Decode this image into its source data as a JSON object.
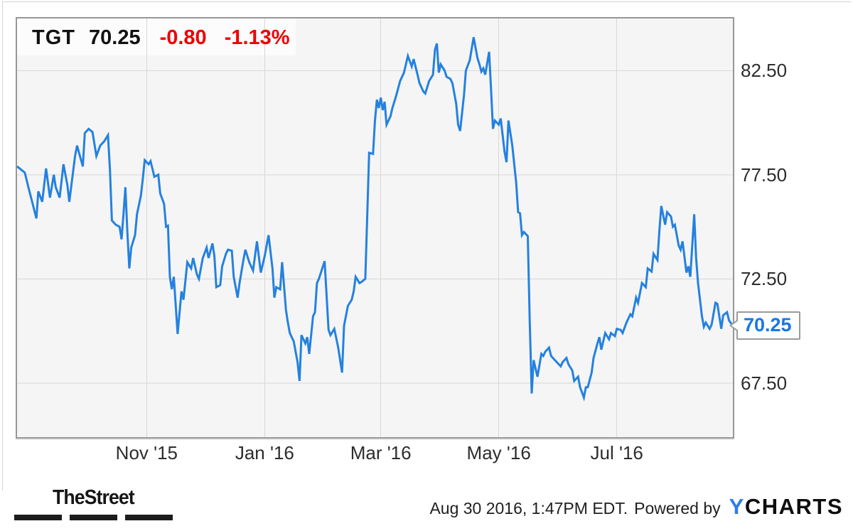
{
  "header": {
    "symbol": "TGT",
    "price": "70.25",
    "change": "-0.80",
    "change_pct": "-1.13%"
  },
  "callout": {
    "text": "70.25"
  },
  "footer": {
    "brand": "TheStreet",
    "timestamp": "Aug 30 2016, 1:47PM EDT.",
    "powered_by": "Powered by",
    "logo_y": "Y",
    "logo_charts": "CHARTS"
  },
  "colors": {
    "line_blue": "#2481df",
    "callout_blue": "#1877e6",
    "negative_red": "#ee0000",
    "logo_blue": "#2e7bf0",
    "grid": "#d7d7d7",
    "plot_bg": "#f5f5f5",
    "plot_border": "#979797"
  },
  "chart_data": {
    "type": "line",
    "title": "TGT price chart, 1 year",
    "series_name": "TGT",
    "legend": "none",
    "grid": "on",
    "x_axis": {
      "unit": "days_since_start",
      "start_date": "2015-08-26",
      "end_date": "2016-08-30",
      "range": [
        0,
        370
      ],
      "ticks": [
        {
          "label": "Nov '15",
          "day": 67
        },
        {
          "label": "Jan '16",
          "day": 128
        },
        {
          "label": "Mar '16",
          "day": 188
        },
        {
          "label": "May '16",
          "day": 249
        },
        {
          "label": "Jul '16",
          "day": 310
        }
      ]
    },
    "y_axis": {
      "range": [
        64.9,
        85.0
      ],
      "ticks": [
        {
          "label": "82.50",
          "value": 82.5
        },
        {
          "label": "77.50",
          "value": 77.5
        },
        {
          "label": "72.50",
          "value": 72.5
        },
        {
          "label": "67.50",
          "value": 67.5
        }
      ]
    },
    "last_point": {
      "date": "2016-08-30",
      "price": 70.25
    },
    "points": [
      [
        0,
        77.9
      ],
      [
        4,
        77.6
      ],
      [
        6,
        76.85
      ],
      [
        10,
        75.4
      ],
      [
        11,
        76.7
      ],
      [
        13,
        76.2
      ],
      [
        15,
        77.8
      ],
      [
        17,
        76.4
      ],
      [
        19,
        77.5
      ],
      [
        20,
        76.9
      ],
      [
        22,
        76.4
      ],
      [
        24,
        78.0
      ],
      [
        26,
        77.0
      ],
      [
        27,
        76.2
      ],
      [
        30,
        78.4
      ],
      [
        31,
        78.9
      ],
      [
        34,
        77.9
      ],
      [
        35,
        79.5
      ],
      [
        37,
        79.7
      ],
      [
        39,
        79.55
      ],
      [
        41,
        78.4
      ],
      [
        43,
        78.9
      ],
      [
        45,
        79.1
      ],
      [
        47,
        79.4
      ],
      [
        48,
        77.8
      ],
      [
        49,
        75.3
      ],
      [
        51,
        75.1
      ],
      [
        53,
        75.0
      ],
      [
        54,
        74.4
      ],
      [
        55,
        75.6
      ],
      [
        56,
        76.9
      ],
      [
        57,
        74.8
      ],
      [
        58,
        73.0
      ],
      [
        59,
        74.0
      ],
      [
        61,
        74.6
      ],
      [
        62,
        75.6
      ],
      [
        64,
        76.5
      ],
      [
        65,
        77.3
      ],
      [
        66,
        78.2
      ],
      [
        68,
        78.0
      ],
      [
        69,
        78.15
      ],
      [
        71,
        77.4
      ],
      [
        73,
        77.5
      ],
      [
        74,
        76.6
      ],
      [
        76,
        76.1
      ],
      [
        77,
        75.0
      ],
      [
        78,
        75.05
      ],
      [
        79,
        72.6
      ],
      [
        80,
        72.0
      ],
      [
        81,
        72.6
      ],
      [
        83,
        69.85
      ],
      [
        85,
        71.9
      ],
      [
        86,
        71.5
      ],
      [
        88,
        73.3
      ],
      [
        90,
        73.0
      ],
      [
        91,
        73.5
      ],
      [
        93,
        72.7
      ],
      [
        94,
        72.5
      ],
      [
        96,
        73.5
      ],
      [
        98,
        74.0
      ],
      [
        99,
        73.5
      ],
      [
        101,
        74.2
      ],
      [
        102,
        73.6
      ],
      [
        103,
        72.1
      ],
      [
        105,
        72.2
      ],
      [
        106,
        73.1
      ],
      [
        108,
        73.7
      ],
      [
        109,
        73.9
      ],
      [
        111,
        73.85
      ],
      [
        112,
        72.6
      ],
      [
        114,
        71.6
      ],
      [
        115,
        72.3
      ],
      [
        117,
        73.4
      ],
      [
        118,
        73.9
      ],
      [
        120,
        73.3
      ],
      [
        122,
        72.9
      ],
      [
        124,
        74.3
      ],
      [
        126,
        72.8
      ],
      [
        128,
        73.6
      ],
      [
        130,
        74.6
      ],
      [
        132,
        73.0
      ],
      [
        133,
        71.6
      ],
      [
        134,
        72.1
      ],
      [
        136,
        72.0
      ],
      [
        137,
        73.3
      ],
      [
        139,
        71.0
      ],
      [
        140,
        70.4
      ],
      [
        141,
        69.9
      ],
      [
        143,
        69.5
      ],
      [
        145,
        68.5
      ],
      [
        146,
        67.6
      ],
      [
        147,
        69.8
      ],
      [
        149,
        69.4
      ],
      [
        150,
        69.7
      ],
      [
        151,
        68.9
      ],
      [
        153,
        70.7
      ],
      [
        154,
        70.9
      ],
      [
        155,
        72.3
      ],
      [
        156,
        72.5
      ],
      [
        159,
        73.35
      ],
      [
        161,
        70.05
      ],
      [
        162,
        69.8
      ],
      [
        164,
        70.1
      ],
      [
        166,
        69.2
      ],
      [
        168,
        68.0
      ],
      [
        169,
        70.25
      ],
      [
        171,
        71.2
      ],
      [
        173,
        71.5
      ],
      [
        174,
        71.9
      ],
      [
        175,
        72.6
      ],
      [
        177,
        72.3
      ],
      [
        178,
        72.35
      ],
      [
        180,
        72.5
      ],
      [
        181,
        75.5
      ],
      [
        182,
        78.55
      ],
      [
        184,
        78.5
      ],
      [
        185,
        80.1
      ],
      [
        186,
        81.1
      ],
      [
        187,
        80.7
      ],
      [
        188,
        81.2
      ],
      [
        189,
        80.6
      ],
      [
        190,
        81.0
      ],
      [
        191,
        79.9
      ],
      [
        193,
        80.3
      ],
      [
        194,
        80.7
      ],
      [
        196,
        81.3
      ],
      [
        198,
        82.0
      ],
      [
        200,
        82.4
      ],
      [
        202,
        83.2
      ],
      [
        204,
        82.7
      ],
      [
        205,
        83.05
      ],
      [
        207,
        82.3
      ],
      [
        208,
        81.9
      ],
      [
        210,
        81.5
      ],
      [
        211,
        81.4
      ],
      [
        213,
        82.0
      ],
      [
        215,
        82.3
      ],
      [
        216,
        83.5
      ],
      [
        217,
        83.8
      ],
      [
        218,
        82.4
      ],
      [
        219,
        82.8
      ],
      [
        221,
        82.5
      ],
      [
        222,
        82.2
      ],
      [
        224,
        82.1
      ],
      [
        225,
        81.9
      ],
      [
        227,
        80.9
      ],
      [
        228,
        79.9
      ],
      [
        229,
        79.6
      ],
      [
        231,
        81.3
      ],
      [
        232,
        82.5
      ],
      [
        234,
        83.0
      ],
      [
        236,
        84.1
      ],
      [
        238,
        83.1
      ],
      [
        239,
        82.8
      ],
      [
        240,
        82.45
      ],
      [
        241,
        82.6
      ],
      [
        242,
        82.3
      ],
      [
        244,
        83.4
      ],
      [
        245,
        81.6
      ],
      [
        246,
        79.7
      ],
      [
        247,
        80.1
      ],
      [
        249,
        79.9
      ],
      [
        250,
        80.2
      ],
      [
        252,
        78.6
      ],
      [
        253,
        78.1
      ],
      [
        254,
        80.1
      ],
      [
        256,
        78.9
      ],
      [
        258,
        77.1
      ],
      [
        259,
        75.7
      ],
      [
        260,
        75.65
      ],
      [
        261,
        74.6
      ],
      [
        262,
        74.75
      ],
      [
        264,
        74.55
      ],
      [
        265,
        70.5
      ],
      [
        266,
        67.0
      ],
      [
        267,
        68.6
      ],
      [
        268,
        68.2
      ],
      [
        269,
        67.8
      ],
      [
        271,
        68.9
      ],
      [
        272,
        68.8
      ],
      [
        273,
        69.0
      ],
      [
        275,
        69.2
      ],
      [
        276,
        68.8
      ],
      [
        278,
        68.6
      ],
      [
        279,
        68.5
      ],
      [
        281,
        68.3
      ],
      [
        282,
        68.5
      ],
      [
        284,
        68.7
      ],
      [
        285,
        68.4
      ],
      [
        287,
        68.1
      ],
      [
        288,
        67.6
      ],
      [
        290,
        67.8
      ],
      [
        291,
        67.3
      ],
      [
        293,
        66.8
      ],
      [
        294,
        67.3
      ],
      [
        295,
        67.3
      ],
      [
        297,
        68.0
      ],
      [
        298,
        68.7
      ],
      [
        300,
        69.4
      ],
      [
        301,
        69.7
      ],
      [
        302,
        69.1
      ],
      [
        304,
        69.9
      ],
      [
        306,
        69.6
      ],
      [
        307,
        69.9
      ],
      [
        309,
        69.75
      ],
      [
        310,
        70.1
      ],
      [
        312,
        70.05
      ],
      [
        313,
        69.9
      ],
      [
        315,
        70.4
      ],
      [
        317,
        70.8
      ],
      [
        318,
        70.7
      ],
      [
        320,
        71.6
      ],
      [
        321,
        71.35
      ],
      [
        323,
        72.3
      ],
      [
        325,
        72.1
      ],
      [
        326,
        73.0
      ],
      [
        328,
        72.85
      ],
      [
        329,
        73.7
      ],
      [
        331,
        73.4
      ],
      [
        332,
        74.8
      ],
      [
        333,
        76.0
      ],
      [
        335,
        75.1
      ],
      [
        336,
        75.7
      ],
      [
        338,
        75.5
      ],
      [
        339,
        75.0
      ],
      [
        340,
        75.1
      ],
      [
        342,
        74.1
      ],
      [
        343,
        73.9
      ],
      [
        344,
        74.3
      ],
      [
        346,
        72.8
      ],
      [
        347,
        73.1
      ],
      [
        348,
        72.6
      ],
      [
        350,
        75.6
      ],
      [
        351,
        73.5
      ],
      [
        352,
        72.3
      ],
      [
        354,
        70.7
      ],
      [
        355,
        70.2
      ],
      [
        356,
        70.4
      ],
      [
        358,
        70.1
      ],
      [
        359,
        70.3
      ],
      [
        361,
        71.35
      ],
      [
        362,
        71.3
      ],
      [
        364,
        70.1
      ],
      [
        365,
        70.75
      ],
      [
        367,
        70.9
      ],
      [
        368,
        70.5
      ],
      [
        370,
        70.25
      ]
    ]
  }
}
